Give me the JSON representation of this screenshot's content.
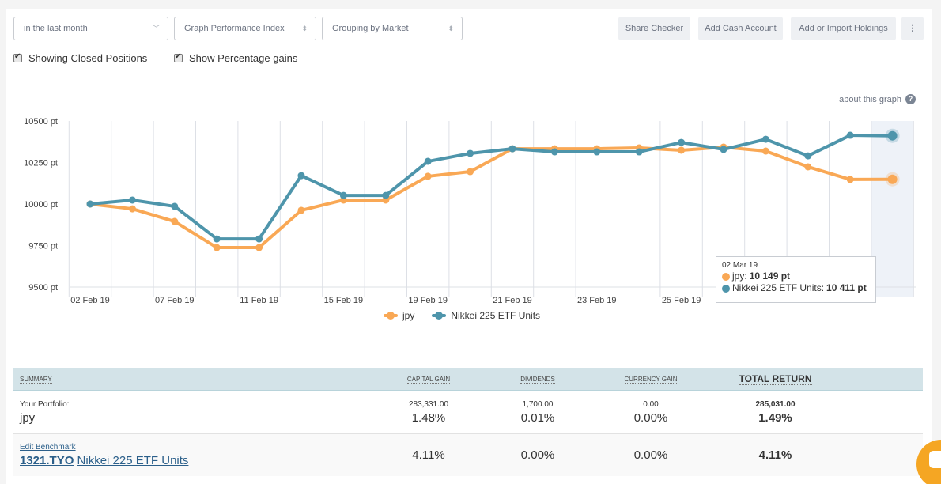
{
  "toolbar": {
    "period_select": "in the last month",
    "graph_select": "Graph Performance Index",
    "grouping_select": "Grouping by Market",
    "share_checker": "Share Checker",
    "add_cash": "Add Cash Account",
    "add_import": "Add or Import Holdings",
    "more": "⋮"
  },
  "options": {
    "closed_positions": "Showing Closed Positions",
    "percentage_gains": "Show Percentage gains"
  },
  "about_graph": "about this graph",
  "about_icon": "?",
  "colors": {
    "jpy": "#f9a855",
    "nikkei": "#4e95ab",
    "highlight": "#eef2f8",
    "grid": "#dde0e6"
  },
  "tooltip": {
    "date": "02 Mar 19",
    "rows": [
      {
        "label": "jpy: ",
        "value": "10 149 pt"
      },
      {
        "label": "Nikkei 225 ETF Units: ",
        "value": "10 411 pt"
      }
    ]
  },
  "chart_data": {
    "type": "line",
    "title": "",
    "xlabel": "",
    "ylabel": "",
    "ylim": [
      9500,
      10500
    ],
    "yticks": [
      9500,
      9750,
      10000,
      10250,
      10500
    ],
    "ytick_labels": [
      "9500 pt",
      "9750 pt",
      "10000 pt",
      "10250 pt",
      "10500 pt"
    ],
    "x_labels": [
      {
        "index": 0,
        "label": "02 Feb 19"
      },
      {
        "index": 2,
        "label": "07 Feb 19"
      },
      {
        "index": 4,
        "label": "11 Feb 19"
      },
      {
        "index": 6,
        "label": "15 Feb 19"
      },
      {
        "index": 8,
        "label": "19 Feb 19"
      },
      {
        "index": 10,
        "label": "21 Feb 19"
      },
      {
        "index": 12,
        "label": "23 Feb 19"
      },
      {
        "index": 14,
        "label": "25 Feb 19"
      }
    ],
    "n_points": 20,
    "grid": true,
    "legend": "bottom",
    "highlight_index": 19,
    "series": [
      {
        "name": "jpy",
        "key": "jpy",
        "values": [
          10000,
          9971,
          9895,
          9738,
          9738,
          9962,
          10024,
          10024,
          10167,
          10195,
          10333,
          10333,
          10333,
          10338,
          10324,
          10343,
          10319,
          10224,
          10148,
          10149
        ]
      },
      {
        "name": "Nikkei 225 ETF Units",
        "key": "nikkei",
        "values": [
          10000,
          10024,
          9986,
          9790,
          9790,
          10171,
          10052,
          10052,
          10257,
          10305,
          10333,
          10314,
          10314,
          10314,
          10371,
          10329,
          10390,
          10290,
          10414,
          10411
        ]
      }
    ]
  },
  "summary": {
    "headers": [
      "Summary",
      "Capital Gain",
      "Dividends",
      "Currency Gain",
      "Total Return"
    ],
    "portfolio": {
      "label": "Your Portfolio:",
      "name": "jpy",
      "capital_gain": "283,331.00",
      "capital_gain_pct": "1.48%",
      "dividends": "1,700.00",
      "dividends_pct": "0.01%",
      "currency_gain": "0.00",
      "currency_gain_pct": "0.00%",
      "total_return": "285,031.00",
      "total_return_pct": "1.49%"
    },
    "benchmark": {
      "edit_label": "Edit Benchmark",
      "ticker": "1321.TYO",
      "name": "Nikkei 225 ETF Units",
      "capital_gain_pct": "4.11%",
      "dividends_pct": "0.00%",
      "currency_gain_pct": "0.00%",
      "total_return_pct": "4.11%"
    }
  }
}
